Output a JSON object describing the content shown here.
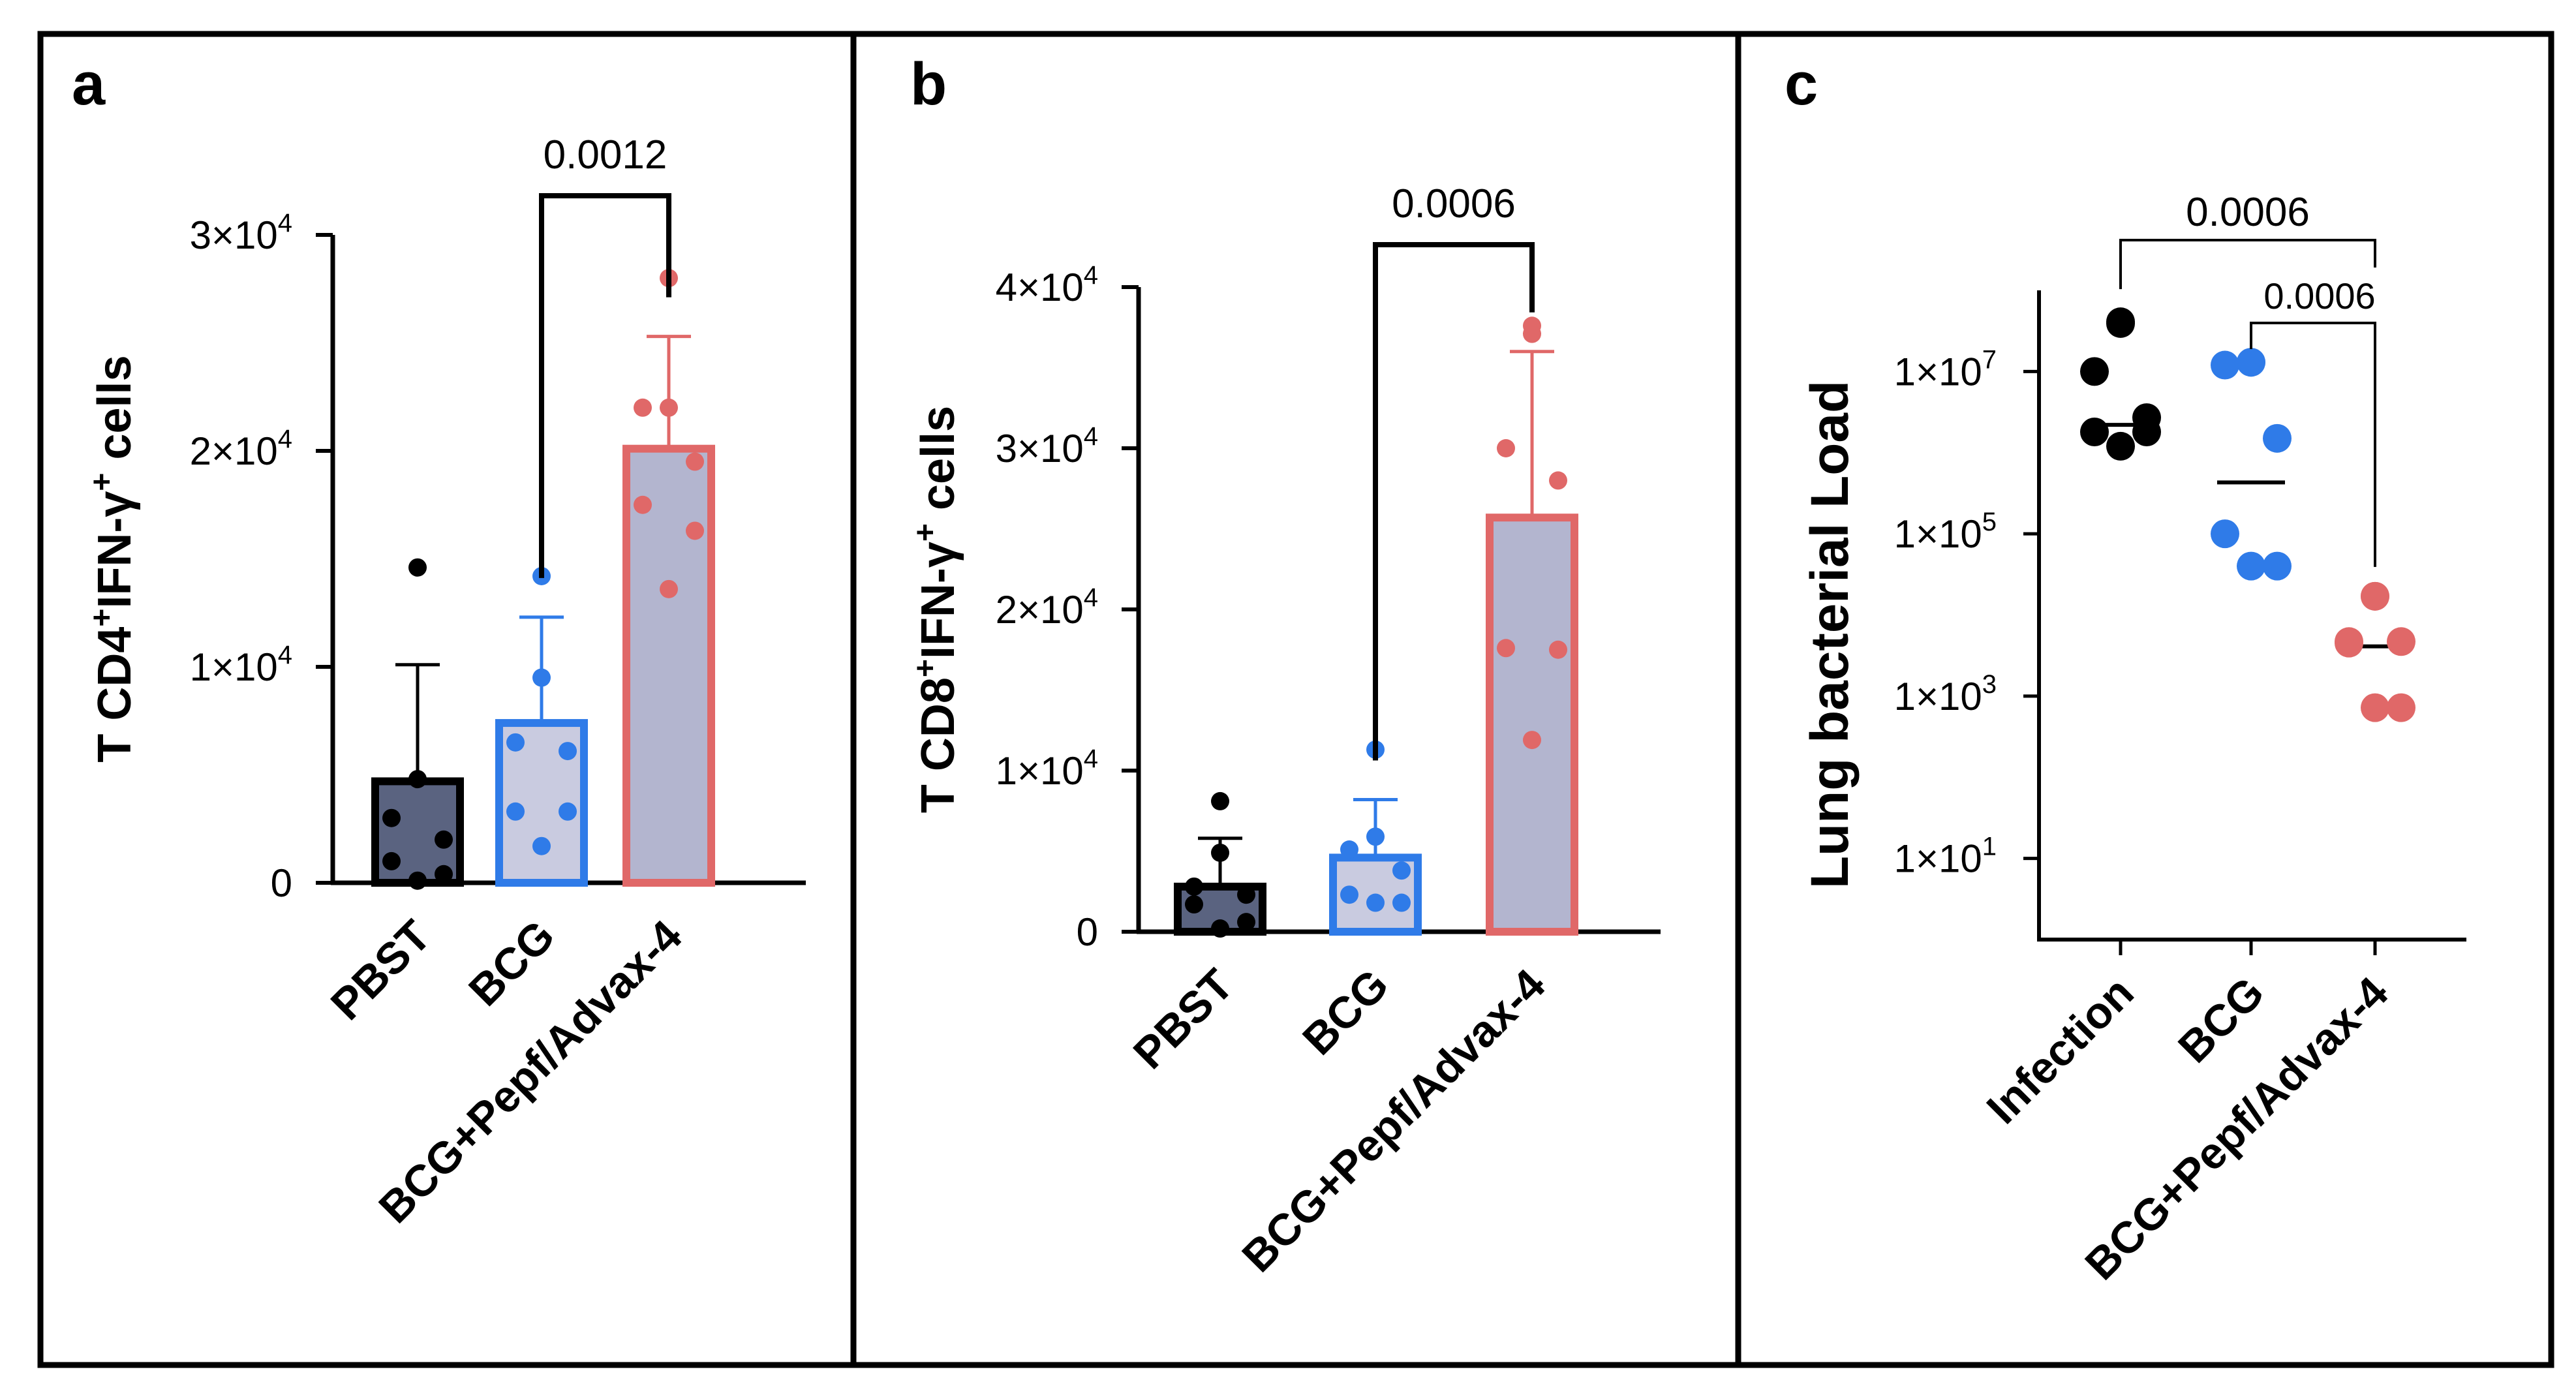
{
  "chart_data": [
    {
      "panel_label": "a",
      "type": "bar",
      "categories": [
        "PBST",
        "BCG",
        "BCG+Pepf/Advax-4"
      ],
      "ylabel": {
        "pre": "T CD4",
        "sup1": "+",
        "mid": "IFN-γ",
        "sup2": "+",
        "post": " cells"
      },
      "ylim": [
        0,
        30000
      ],
      "yticks": [
        {
          "value": 0,
          "mant": "0",
          "exp": ""
        },
        {
          "value": 10000,
          "mant": "1×10",
          "exp": "4"
        },
        {
          "value": 20000,
          "mant": "2×10",
          "exp": "4"
        },
        {
          "value": 30000,
          "mant": "3×10",
          "exp": "4"
        }
      ],
      "groups": [
        {
          "name": "PBST",
          "mean": 4700,
          "sd_upper": 10100,
          "color": "#000000",
          "fill": "#5a6380",
          "points": [
            14600,
            4800,
            3000,
            2000,
            1000,
            400,
            100
          ]
        },
        {
          "name": "BCG",
          "mean": 7400,
          "sd_upper": 12300,
          "color": "#2f7be8",
          "fill": "#c9cbe0",
          "points": [
            14200,
            9500,
            6500,
            6100,
            3300,
            3300,
            1700
          ]
        },
        {
          "name": "BCG+Pepf/Advax-4",
          "mean": 20100,
          "sd_upper": 25300,
          "color": "#e06868",
          "fill": "#b3b5cf",
          "points": [
            28000,
            22000,
            22000,
            19500,
            17500,
            16300,
            13600
          ]
        }
      ],
      "comparison": {
        "from": 1,
        "to": 2,
        "label": "0.0012"
      }
    },
    {
      "panel_label": "b",
      "type": "bar",
      "categories": [
        "PBST",
        "BCG",
        "BCG+Pepf/Advax-4"
      ],
      "ylabel": {
        "pre": "T CD8",
        "sup1": "+",
        "mid": "IFN-γ",
        "sup2": "+",
        "post": " cells"
      },
      "ylim": [
        0,
        40000
      ],
      "yticks": [
        {
          "value": 0,
          "mant": "0",
          "exp": ""
        },
        {
          "value": 10000,
          "mant": "1×10",
          "exp": "4"
        },
        {
          "value": 20000,
          "mant": "2×10",
          "exp": "4"
        },
        {
          "value": 30000,
          "mant": "3×10",
          "exp": "4"
        },
        {
          "value": 40000,
          "mant": "4×10",
          "exp": "4"
        }
      ],
      "groups": [
        {
          "name": "PBST",
          "mean": 2800,
          "sd_upper": 5800,
          "color": "#000000",
          "fill": "#5a6380",
          "points": [
            8100,
            4900,
            2800,
            2300,
            1700,
            600,
            200
          ]
        },
        {
          "name": "BCG",
          "mean": 4600,
          "sd_upper": 8200,
          "color": "#2f7be8",
          "fill": "#c9cbe0",
          "points": [
            11300,
            5900,
            5100,
            3800,
            2300,
            1800,
            1800
          ]
        },
        {
          "name": "BCG+Pepf/Advax-4",
          "mean": 25700,
          "sd_upper": 36000,
          "color": "#e06868",
          "fill": "#b3b5cf",
          "points": [
            37600,
            37100,
            30000,
            28000,
            17600,
            17500,
            11900
          ]
        }
      ],
      "comparison": {
        "from": 1,
        "to": 2,
        "label": "0.0006"
      }
    },
    {
      "panel_label": "c",
      "type": "scatter",
      "categories": [
        "Infection",
        "BCG",
        "BCG+Pepf/Advax-4"
      ],
      "ylabel": "Lung bacterial Load",
      "yscale": "log",
      "ylim_log10": [
        0,
        8.0
      ],
      "yticks": [
        {
          "log10": 1,
          "mant": "1×10",
          "exp": "1"
        },
        {
          "log10": 3,
          "mant": "1×10",
          "exp": "3"
        },
        {
          "log10": 5,
          "mant": "1×10",
          "exp": "5"
        },
        {
          "log10": 7,
          "mant": "1×10",
          "exp": "7"
        }
      ],
      "groups": [
        {
          "name": "Infection",
          "median": 2200000,
          "color": "#000000",
          "points": [
            41000000,
            39000000,
            10000000,
            2700000,
            1800000,
            1800000,
            1200000
          ]
        },
        {
          "name": "BCG",
          "median": 430000,
          "color": "#2f7be8",
          "points": [
            13000000,
            13000000,
            12000000,
            1500000,
            100000,
            40000,
            40000
          ]
        },
        {
          "name": "BCG+Pepf/Advax-4",
          "median": 4100,
          "color": "#e06868",
          "points": [
            17000,
            17000,
            4700,
            4700,
            4500,
            720,
            720
          ]
        }
      ],
      "comparisons": [
        {
          "from": 0,
          "to": 2,
          "label": "0.0006"
        },
        {
          "from": 1,
          "to": 2,
          "label": "0.0006"
        }
      ]
    }
  ]
}
